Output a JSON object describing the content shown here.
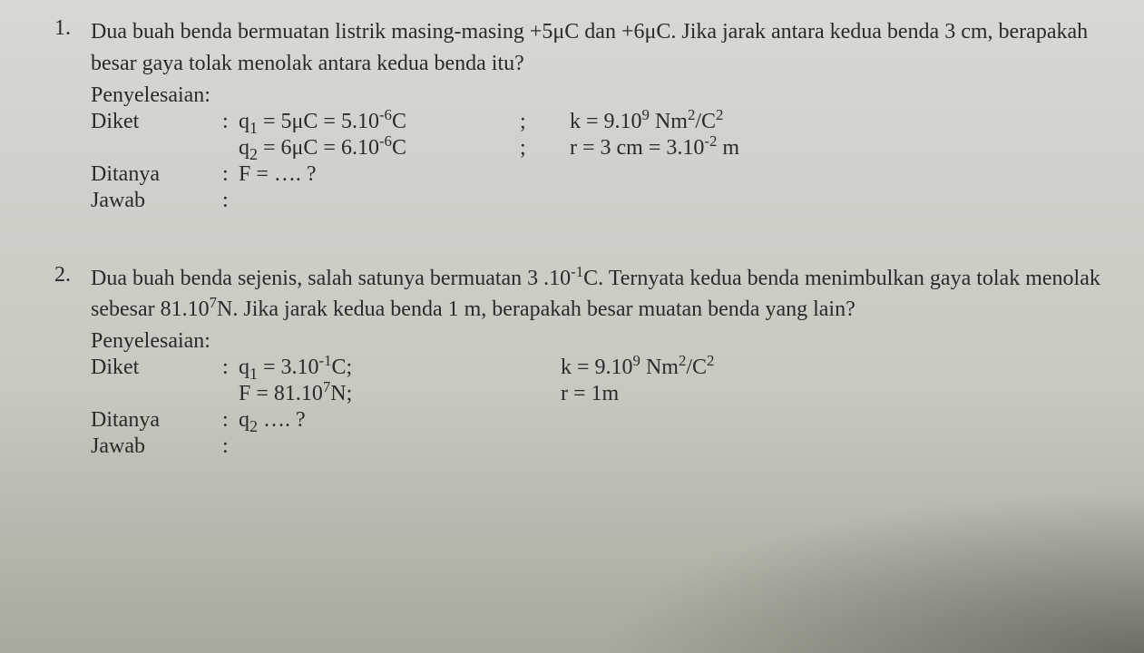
{
  "problem1": {
    "number": "1.",
    "question": "Dua buah benda bermuatan listrik masing-masing +5μC dan +6μC. Jika jarak antara kedua benda 3 cm, berapakah besar gaya tolak menolak antara kedua benda itu?",
    "penyelesaian_label": "Penyelesaian:",
    "diket_label": "Diket",
    "q1_expr_a": "q",
    "q1_expr_b": " = 5μC = 5.10",
    "q1_expr_c": "C",
    "k_expr_a": "k = 9.10",
    "k_expr_b": " Nm",
    "k_expr_c": "/C",
    "q2_expr_a": "q",
    "q2_expr_b": " = 6μC = 6.10",
    "q2_expr_c": "C",
    "r_expr_a": "r = 3 cm = 3.10",
    "r_expr_b": " m",
    "ditanya_label": "Ditanya",
    "ditanya_value": "F = …. ?",
    "jawab_label": "Jawab",
    "semi": ";",
    "colon": ":",
    "sup_neg6": "-6",
    "sup_9": "9",
    "sup_2": "2",
    "sup_neg2": "-2",
    "sub_1": "1",
    "sub_2": "2"
  },
  "problem2": {
    "number": "2.",
    "question_a": "Dua buah benda sejenis, salah satunya bermuatan 3 .10",
    "question_b": "C. Ternyata kedua benda menimbulkan gaya tolak menolak sebesar 81.10",
    "question_c": "N. Jika jarak kedua benda 1 m, berapakah besar muatan benda yang lain?",
    "penyelesaian_label": "Penyelesaian:",
    "diket_label": "Diket",
    "q1_expr_a": "q",
    "q1_expr_b": " = 3.10",
    "q1_expr_c": "C;",
    "k_expr_a": "k = 9.10",
    "k_expr_b": " Nm",
    "k_expr_c": "/C",
    "F_expr_a": "F  = 81.10",
    "F_expr_b": "N;",
    "r_expr": "r = 1m",
    "ditanya_label": "Ditanya",
    "ditanya_value_a": "q",
    "ditanya_value_b": " …. ?",
    "jawab_label": "Jawab",
    "colon": ":",
    "sup_neg1": "-1",
    "sup_7": "7",
    "sup_9": "9",
    "sup_2": "2",
    "sub_1": "1",
    "sub_2": "2"
  }
}
